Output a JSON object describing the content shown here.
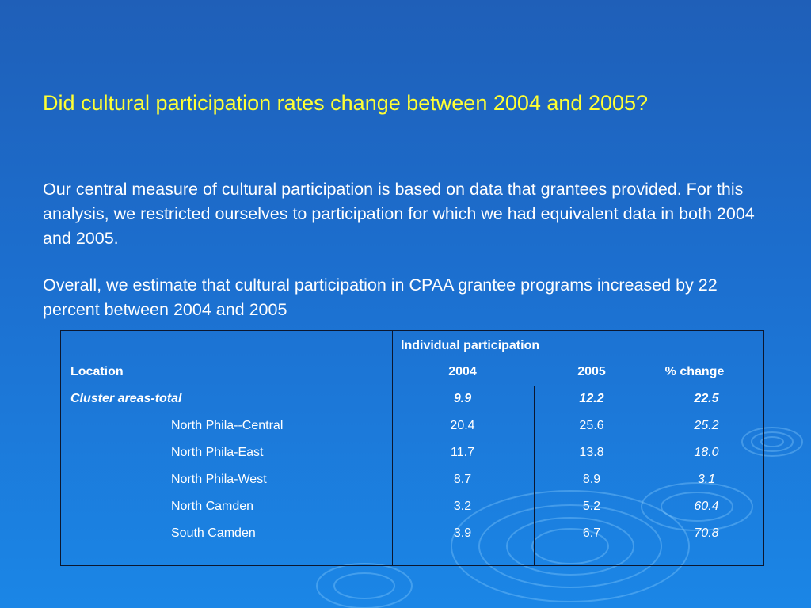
{
  "title": "Did cultural participation rates change between 2004 and 2005?",
  "paragraph1": "Our central measure of cultural participation is based on data that grantees provided.  For this analysis, we restricted ourselves to participation for which we had equivalent data in both 2004 and 2005.",
  "paragraph2": "Overall, we estimate that cultural participation in CPAA grantee programs increased by 22 percent between 2004 and 2005",
  "table": {
    "group_header": "Individual participation",
    "columns": [
      "Location",
      "2004",
      "2005",
      "% change"
    ],
    "total_row": {
      "location": "Cluster areas-total",
      "y2004": "9.9",
      "y2005": "12.2",
      "change": "22.5"
    },
    "rows": [
      {
        "location": "North Phila--Central",
        "y2004": "20.4",
        "y2005": "25.6",
        "change": "25.2"
      },
      {
        "location": "North Phila-East",
        "y2004": "11.7",
        "y2005": "13.8",
        "change": "18.0"
      },
      {
        "location": "North Phila-West",
        "y2004": "8.7",
        "y2005": "8.9",
        "change": "3.1"
      },
      {
        "location": "North Camden",
        "y2004": "3.2",
        "y2005": "5.2",
        "change": "60.4"
      },
      {
        "location": "South Camden",
        "y2004": "3.9",
        "y2005": "6.7",
        "change": "70.8"
      }
    ]
  }
}
